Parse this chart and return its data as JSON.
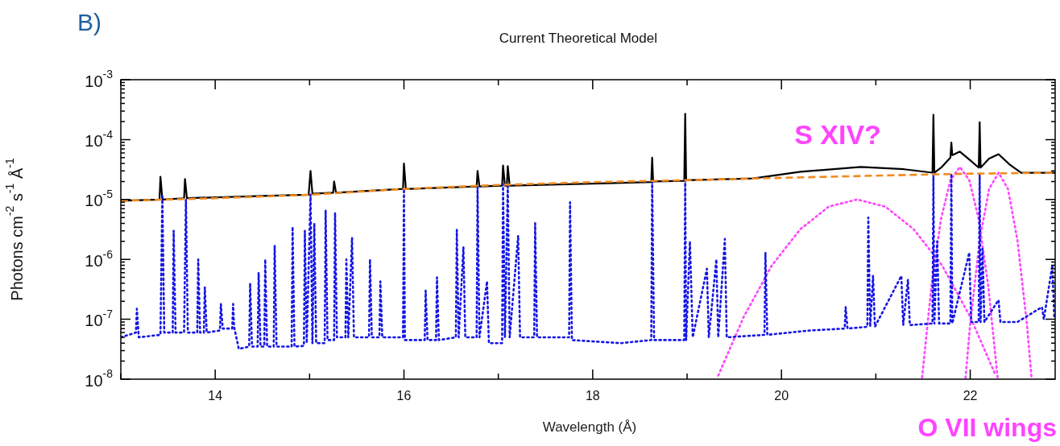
{
  "chart_data": {
    "type": "line",
    "title": "Current Theoretical Model",
    "xlabel": "Wavelength (Å)",
    "ylabel": "Photons cm$^{-2}$ s$^{-1}$ Å$^{-1}$",
    "annotations": [
      "B)",
      "S XIV?",
      "O VII wings"
    ],
    "log": "y",
    "grid": false,
    "legend": false,
    "marker": "none",
    "xlim": [
      13,
      22.9
    ],
    "xticks": [
      {
        "value": 13,
        "label": null
      },
      14,
      {
        "value": 15,
        "label": null
      },
      16,
      {
        "value": 17,
        "label": null
      },
      18,
      {
        "value": 19,
        "label": null
      },
      20,
      {
        "value": 21,
        "label": null
      },
      22
    ],
    "ylim": [
      1e-08,
      0.001
    ],
    "yticks": [
      {
        "value": 1e-08,
        "label": "10$^{-8}$"
      },
      {
        "value": 2e-08,
        "label": null
      },
      {
        "value": 3e-08,
        "label": null
      },
      {
        "value": 4e-08,
        "label": null
      },
      {
        "value": 5e-08,
        "label": null
      },
      {
        "value": 6e-08,
        "label": null
      },
      {
        "value": 7e-08,
        "label": null
      },
      {
        "value": 8e-08,
        "label": null
      },
      {
        "value": 9e-08,
        "label": null
      },
      {
        "value": 1e-07,
        "label": "10$^{-7}$"
      },
      {
        "value": 2e-07,
        "label": null
      },
      {
        "value": 3e-07,
        "label": null
      },
      {
        "value": 4e-07,
        "label": null
      },
      {
        "value": 5e-07,
        "label": null
      },
      {
        "value": 6e-07,
        "label": null
      },
      {
        "value": 7e-07,
        "label": null
      },
      {
        "value": 8e-07,
        "label": null
      },
      {
        "value": 9e-07,
        "label": null
      },
      {
        "value": 1e-06,
        "label": "10$^{-6}$"
      },
      {
        "value": 2e-06,
        "label": null
      },
      {
        "value": 3e-06,
        "label": null
      },
      {
        "value": 4e-06,
        "label": null
      },
      {
        "value": 5e-06,
        "label": null
      },
      {
        "value": 6e-06,
        "label": null
      },
      {
        "value": 7e-06,
        "label": null
      },
      {
        "value": 8e-06,
        "label": null
      },
      {
        "value": 9e-06,
        "label": null
      },
      {
        "value": 1e-05,
        "label": "10$^{-5}$"
      },
      {
        "value": 2e-05,
        "label": null
      },
      {
        "value": 3e-05,
        "label": null
      },
      {
        "value": 4e-05,
        "label": null
      },
      {
        "value": 5e-05,
        "label": null
      },
      {
        "value": 6e-05,
        "label": null
      },
      {
        "value": 7e-05,
        "label": null
      },
      {
        "value": 8e-05,
        "label": null
      },
      {
        "value": 9e-05,
        "label": null
      },
      {
        "value": 0.0001,
        "label": "10$^{-4}$"
      },
      {
        "value": 0.0002,
        "label": null
      },
      {
        "value": 0.0003,
        "label": null
      },
      {
        "value": 0.0004,
        "label": null
      },
      {
        "value": 0.0005,
        "label": null
      },
      {
        "value": 0.0006,
        "label": null
      },
      {
        "value": 0.0007,
        "label": null
      },
      {
        "value": 0.0008,
        "label": null
      },
      {
        "value": 0.0009,
        "label": null
      },
      {
        "value": 0.001,
        "label": "10$^{-3}$"
      }
    ],
    "series": [
      {
        "color": "#1515e6",
        "line_style": "dotted",
        "x": [
          13.0,
          13.16,
          13.17,
          13.19,
          13.42,
          13.44,
          13.46,
          13.55,
          13.56,
          13.58,
          13.67,
          13.69,
          13.71,
          13.81,
          13.82,
          13.84,
          13.88,
          13.89,
          13.91,
          14.05,
          14.06,
          14.08,
          14.18,
          14.19,
          14.2,
          14.25,
          14.36,
          14.37,
          14.39,
          14.45,
          14.46,
          14.48,
          14.52,
          14.53,
          14.55,
          14.62,
          14.63,
          14.65,
          14.81,
          14.82,
          14.84,
          14.94,
          14.95,
          14.97,
          15.01,
          15.03,
          15.05,
          15.07,
          15.16,
          15.17,
          15.19,
          15.26,
          15.27,
          15.29,
          15.38,
          15.39,
          15.41,
          15.45,
          15.47,
          15.63,
          15.64,
          15.66,
          15.74,
          15.75,
          15.77,
          15.99,
          16.0,
          16.01,
          16.22,
          16.23,
          16.25,
          16.34,
          16.35,
          16.37,
          16.55,
          16.56,
          16.58,
          16.63,
          16.65,
          16.77,
          16.78,
          16.8,
          16.88,
          16.9,
          17.04,
          17.05,
          17.07,
          17.1,
          17.12,
          17.21,
          17.23,
          17.38,
          17.39,
          17.41,
          17.75,
          17.76,
          17.78,
          18.3,
          18.62,
          18.63,
          18.65,
          18.97,
          18.98,
          18.99,
          19.03,
          19.06,
          19.21,
          19.23,
          19.31,
          19.33,
          19.4,
          19.42,
          19.82,
          19.83,
          19.85,
          20.3,
          20.67,
          20.68,
          20.7,
          20.91,
          20.92,
          20.94,
          20.97,
          20.99,
          21.27,
          21.29,
          21.34,
          21.36,
          21.6,
          21.61,
          21.62,
          21.65,
          21.67,
          21.79,
          21.8,
          21.81,
          21.99,
          22.01,
          22.09,
          22.1,
          22.11,
          22.13,
          22.15,
          22.3,
          22.32,
          22.5,
          22.76,
          22.78,
          22.87,
          22.89,
          22.9
        ],
        "values": [
          5e-08,
          6e-08,
          1.5e-07,
          5e-08,
          5.5e-08,
          1.2e-05,
          6e-08,
          6e-08,
          3e-06,
          6e-08,
          6e-08,
          1e-05,
          6e-08,
          6e-08,
          1e-06,
          6e-08,
          6e-08,
          3.4e-07,
          6e-08,
          6.5e-08,
          1.8e-07,
          7e-08,
          7e-08,
          1.8e-07,
          7.5e-08,
          3.2e-08,
          3.5e-08,
          4e-07,
          3.5e-08,
          3.5e-08,
          6e-07,
          3.5e-08,
          3.5e-08,
          1e-06,
          3.5e-08,
          3.5e-08,
          1.7e-06,
          3.5e-08,
          3.5e-08,
          3.5e-06,
          3.5e-08,
          3.6e-08,
          3e-06,
          4e-08,
          1.2e-05,
          4e-08,
          4e-06,
          4e-08,
          4e-08,
          6.6e-06,
          4.5e-08,
          4.5e-08,
          6e-06,
          5e-08,
          5e-08,
          1e-06,
          5e-08,
          2.3e-06,
          5e-08,
          5e-08,
          1e-06,
          5e-08,
          5e-08,
          4.3e-07,
          5e-08,
          5e-08,
          1.5e-05,
          4.5e-08,
          4.5e-08,
          3e-07,
          4.5e-08,
          4.5e-08,
          5e-07,
          4.5e-08,
          5e-08,
          3.1e-06,
          5e-08,
          1.6e-06,
          5e-08,
          5e-08,
          1.6e-05,
          5e-08,
          4.3e-07,
          4e-08,
          4e-08,
          1.8e-05,
          5e-08,
          1.8e-05,
          5e-08,
          2.5e-06,
          5e-08,
          5e-08,
          4e-06,
          5e-08,
          5e-08,
          9e-06,
          4.5e-08,
          4e-08,
          4.5e-08,
          2e-05,
          4.5e-08,
          4.5e-08,
          2.1e-05,
          4.5e-08,
          2e-06,
          5e-08,
          7e-07,
          5e-08,
          1e-06,
          5e-08,
          2.2e-06,
          5e-08,
          5.5e-08,
          1.3e-06,
          5.5e-08,
          6.5e-08,
          7e-08,
          1.6e-07,
          7e-08,
          7.5e-08,
          5e-06,
          7.5e-08,
          5.3e-07,
          7.5e-08,
          5.3e-07,
          8e-08,
          4.6e-07,
          8e-08,
          8.5e-08,
          2.6e-05,
          8.5e-08,
          2e-06,
          8.5e-08,
          8.5e-08,
          2.7e-05,
          8.5e-08,
          1.3e-06,
          9e-08,
          9e-08,
          2.7e-05,
          9e-08,
          1.5e-06,
          9e-08,
          2.1e-07,
          9e-08,
          9e-08,
          1.6e-07,
          1e-07,
          8e-07,
          1.1e-07,
          1.1e-07
        ]
      },
      {
        "color": "#000000",
        "line_style": "solid",
        "x": [
          13.0,
          13.41,
          13.42,
          13.44,
          13.67,
          13.68,
          13.7,
          14.5,
          14.99,
          15.01,
          15.03,
          15.25,
          15.26,
          15.28,
          15.99,
          16.0,
          16.02,
          16.77,
          16.78,
          16.8,
          17.04,
          17.05,
          17.07,
          17.09,
          17.1,
          17.12,
          18.62,
          18.63,
          18.64,
          18.97,
          18.98,
          18.99,
          19.7,
          20.2,
          20.84,
          21.3,
          21.6,
          21.61,
          21.62,
          21.7,
          21.79,
          21.8,
          21.81,
          21.89,
          22.0,
          22.09,
          22.1,
          22.11,
          22.2,
          22.3,
          22.42,
          22.54,
          22.9
        ],
        "values": [
          9.5e-06,
          1e-05,
          2.4e-05,
          1e-05,
          1.05e-05,
          2.2e-05,
          1.05e-05,
          1.15e-05,
          1.2e-05,
          3e-05,
          1.25e-05,
          1.3e-05,
          2e-05,
          1.3e-05,
          1.5e-05,
          4e-05,
          1.5e-05,
          1.65e-05,
          3e-05,
          1.65e-05,
          1.7e-05,
          3.7e-05,
          1.7e-05,
          1.7e-05,
          3.6e-05,
          1.7e-05,
          1.95e-05,
          5e-05,
          2e-05,
          2.05e-05,
          0.00027,
          2.1e-05,
          2.25e-05,
          2.9e-05,
          3.5e-05,
          3.2e-05,
          2.8e-05,
          0.00026,
          2.8e-05,
          3.5e-05,
          5e-05,
          8.9e-05,
          5.5e-05,
          6.3e-05,
          4.5e-05,
          3.4e-05,
          0.000195,
          3.4e-05,
          4.8e-05,
          5.7e-05,
          3.8e-05,
          2.8e-05,
          2.8e-05
        ]
      },
      {
        "color": "#f28a1e",
        "line_style": "dashed",
        "x": [
          13,
          14,
          15,
          16,
          17,
          18,
          19,
          20,
          21,
          22,
          22.9
        ],
        "values": [
          9.5e-06,
          1.05e-05,
          1.2e-05,
          1.5e-05,
          1.75e-05,
          1.95e-05,
          2.1e-05,
          2.3e-05,
          2.5e-05,
          2.7e-05,
          2.8e-05
        ]
      },
      {
        "color": "#ff44ff",
        "line_style": "dotted",
        "x": [
          19.33,
          19.6,
          19.9,
          20.2,
          20.5,
          20.8,
          21.1,
          21.4,
          21.7,
          22.0,
          22.27
        ],
        "values": [
          1.15e-08,
          1.1e-07,
          8e-07,
          3.2e-06,
          7.6e-06,
          1e-05,
          7.6e-06,
          3.2e-06,
          8e-07,
          1.1e-07,
          1.15e-08
        ]
      },
      {
        "color": "#ff44ff",
        "line_style": "dotted",
        "x": [
          21.49,
          21.59,
          21.69,
          21.79,
          21.89,
          21.99,
          22.09,
          22.19,
          22.29
        ],
        "values": [
          1.07e-08,
          3.7e-07,
          4.7e-06,
          2.1e-05,
          3.5e-05,
          2.1e-05,
          4.7e-06,
          3.7e-07,
          1.07e-08
        ]
      },
      {
        "color": "#ff44ff",
        "line_style": "dotted",
        "x": [
          21.95,
          22.0,
          22.1,
          22.2,
          22.3,
          22.4,
          22.5,
          22.6,
          22.65
        ],
        "values": [
          1.05e-08,
          8.5e-08,
          2.1e-06,
          1.5e-05,
          2.8e-05,
          1.5e-05,
          2.1e-06,
          8.5e-08,
          1.05e-08
        ]
      }
    ]
  }
}
